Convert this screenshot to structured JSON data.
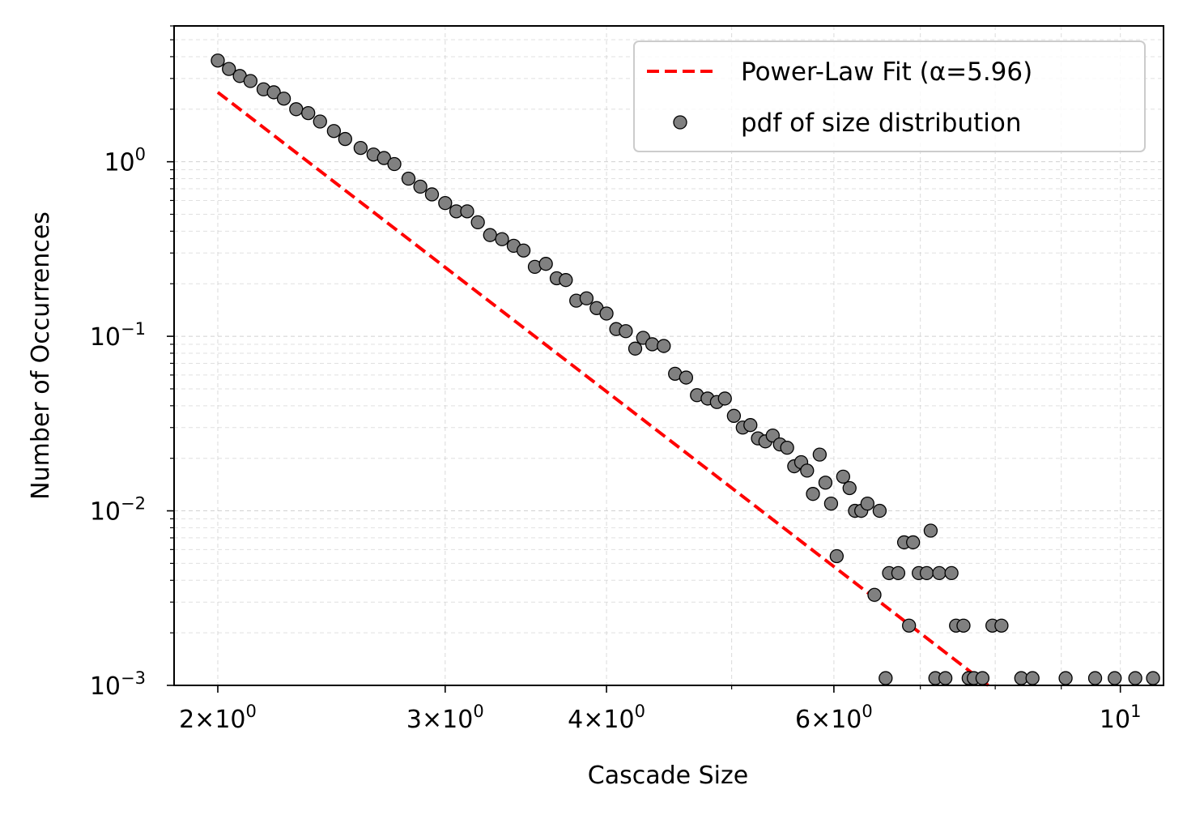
{
  "chart_data": {
    "type": "scatter",
    "xlabel": "Cascade Size",
    "ylabel": "Number of Occurrences",
    "xscale": "log",
    "yscale": "log",
    "xlim": [
      1.85,
      10.8
    ],
    "ylim": [
      0.001,
      6.0
    ],
    "grid": true,
    "legend_position": "top-right",
    "x_ticks": [
      {
        "value": 2,
        "mantissa": "2",
        "exp": "0"
      },
      {
        "value": 3,
        "mantissa": "3",
        "exp": "0"
      },
      {
        "value": 4,
        "mantissa": "4",
        "exp": "0"
      },
      {
        "value": 6,
        "mantissa": "6",
        "exp": "0"
      },
      {
        "value": 10,
        "mantissa": "",
        "exp": "1"
      }
    ],
    "y_ticks": [
      {
        "value": 1,
        "exp": "0"
      },
      {
        "value": 0.1,
        "exp": "−1"
      },
      {
        "value": 0.01,
        "exp": "−2"
      },
      {
        "value": 0.001,
        "exp": "−3"
      }
    ],
    "series": [
      {
        "name": "Power-Law Fit (α=5.96)",
        "kind": "line",
        "style": "dashed",
        "color": "#ff0000",
        "x": [
          2.0,
          7.9
        ],
        "y": [
          2.5,
          0.001
        ]
      },
      {
        "name": "pdf of size distribution",
        "kind": "scatter",
        "color": "#808080",
        "edgecolor": "#000000",
        "points": [
          [
            2.0,
            3.8
          ],
          [
            2.04,
            3.4
          ],
          [
            2.08,
            3.1
          ],
          [
            2.12,
            2.9
          ],
          [
            2.17,
            2.6
          ],
          [
            2.21,
            2.5
          ],
          [
            2.25,
            2.3
          ],
          [
            2.3,
            2.0
          ],
          [
            2.35,
            1.9
          ],
          [
            2.4,
            1.7
          ],
          [
            2.46,
            1.5
          ],
          [
            2.51,
            1.35
          ],
          [
            2.58,
            1.2
          ],
          [
            2.64,
            1.1
          ],
          [
            2.69,
            1.05
          ],
          [
            2.74,
            0.97
          ],
          [
            2.81,
            0.8
          ],
          [
            2.87,
            0.72
          ],
          [
            2.93,
            0.65
          ],
          [
            3.0,
            0.58
          ],
          [
            3.06,
            0.52
          ],
          [
            3.12,
            0.52
          ],
          [
            3.18,
            0.45
          ],
          [
            3.25,
            0.38
          ],
          [
            3.32,
            0.36
          ],
          [
            3.39,
            0.33
          ],
          [
            3.45,
            0.31
          ],
          [
            3.52,
            0.25
          ],
          [
            3.59,
            0.26
          ],
          [
            3.66,
            0.215
          ],
          [
            3.72,
            0.21
          ],
          [
            3.79,
            0.16
          ],
          [
            3.86,
            0.165
          ],
          [
            3.93,
            0.145
          ],
          [
            4.0,
            0.135
          ],
          [
            4.07,
            0.11
          ],
          [
            4.14,
            0.107
          ],
          [
            4.21,
            0.085
          ],
          [
            4.27,
            0.098
          ],
          [
            4.34,
            0.09
          ],
          [
            4.43,
            0.088
          ],
          [
            4.52,
            0.061
          ],
          [
            4.61,
            0.058
          ],
          [
            4.7,
            0.046
          ],
          [
            4.79,
            0.044
          ],
          [
            4.87,
            0.042
          ],
          [
            4.94,
            0.044
          ],
          [
            5.02,
            0.035
          ],
          [
            5.1,
            0.03
          ],
          [
            5.17,
            0.031
          ],
          [
            5.24,
            0.026
          ],
          [
            5.31,
            0.025
          ],
          [
            5.38,
            0.027
          ],
          [
            5.45,
            0.024
          ],
          [
            5.52,
            0.023
          ],
          [
            5.59,
            0.018
          ],
          [
            5.66,
            0.019
          ],
          [
            5.72,
            0.017
          ],
          [
            5.78,
            0.0125
          ],
          [
            5.85,
            0.021
          ],
          [
            5.91,
            0.0145
          ],
          [
            5.97,
            0.011
          ],
          [
            6.03,
            0.0055
          ],
          [
            6.1,
            0.0157
          ],
          [
            6.17,
            0.0135
          ],
          [
            6.23,
            0.01
          ],
          [
            6.3,
            0.01
          ],
          [
            6.37,
            0.011
          ],
          [
            6.45,
            0.0033
          ],
          [
            6.51,
            0.01
          ],
          [
            6.58,
            0.0011
          ],
          [
            6.62,
            0.0044
          ],
          [
            6.73,
            0.0044
          ],
          [
            6.8,
            0.0066
          ],
          [
            6.86,
            0.0022
          ],
          [
            6.91,
            0.0066
          ],
          [
            6.98,
            0.0044
          ],
          [
            7.08,
            0.0044
          ],
          [
            7.13,
            0.0077
          ],
          [
            7.19,
            0.0011
          ],
          [
            7.24,
            0.0044
          ],
          [
            7.32,
            0.0011
          ],
          [
            7.4,
            0.0044
          ],
          [
            7.46,
            0.0022
          ],
          [
            7.56,
            0.0022
          ],
          [
            7.63,
            0.0011
          ],
          [
            7.7,
            0.0011
          ],
          [
            7.82,
            0.0011
          ],
          [
            7.96,
            0.0022
          ],
          [
            8.09,
            0.0022
          ],
          [
            8.38,
            0.0011
          ],
          [
            8.55,
            0.0011
          ],
          [
            9.07,
            0.0011
          ],
          [
            9.56,
            0.0011
          ],
          [
            9.9,
            0.0011
          ],
          [
            10.27,
            0.0011
          ],
          [
            10.6,
            0.0011
          ]
        ]
      }
    ]
  }
}
